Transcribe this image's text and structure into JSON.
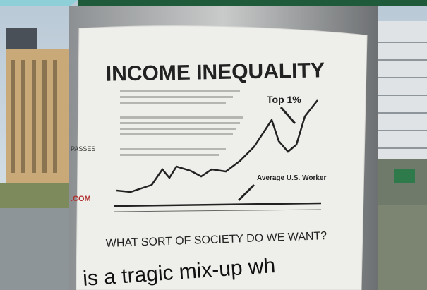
{
  "poster": {
    "title": "INCOME INEQUALITY",
    "top_label": "Top 1%",
    "worker_label": "Average U.S. Worker",
    "question": "WHAT SORT OF SOCIETY DO WE WANT?",
    "bottom_text": "is a tragic mix-up wh",
    "side_text_1": "PASSES",
    "side_text_2": ".COM"
  }
}
